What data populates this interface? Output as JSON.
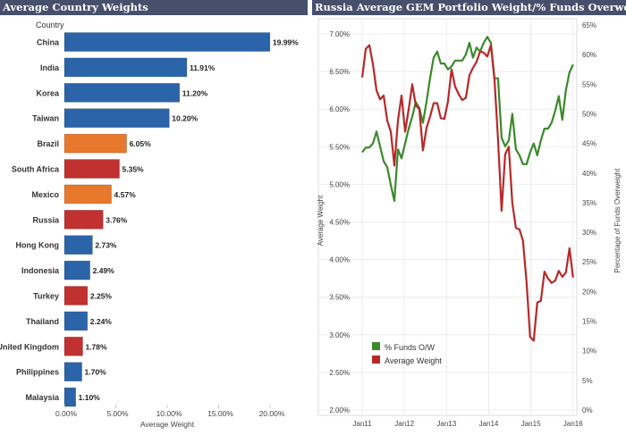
{
  "chart_data": [
    {
      "type": "bar",
      "title": "Average Country Weights",
      "orientation": "horizontal",
      "ylabel": "Country",
      "xlabel": "Average Weight",
      "xlim": [
        0,
        20
      ],
      "xticks": [
        "0.00%",
        "5.00%",
        "10.00%",
        "15.00%",
        "20.00%"
      ],
      "categories": [
        "China",
        "India",
        "Korea",
        "Taiwan",
        "Brazil",
        "South Africa",
        "Mexico",
        "Russia",
        "Hong Kong",
        "Indonesia",
        "Turkey",
        "Thailand",
        "United Kingdom",
        "Philippines",
        "Malaysia"
      ],
      "values": [
        19.99,
        11.91,
        11.2,
        10.2,
        6.05,
        5.35,
        4.57,
        3.76,
        2.73,
        2.49,
        2.25,
        2.24,
        1.78,
        1.7,
        1.1
      ],
      "labels": [
        "19.99%",
        "11.91%",
        "11.20%",
        "10.20%",
        "6.05%",
        "5.35%",
        "4.57%",
        "3.76%",
        "2.73%",
        "2.49%",
        "2.25%",
        "2.24%",
        "1.78%",
        "1.70%",
        "1.10%"
      ],
      "bar_colors": [
        "#2b64a8",
        "#2b64a8",
        "#2b64a8",
        "#2b64a8",
        "#e8782c",
        "#c0312f",
        "#e8782c",
        "#c0312f",
        "#2b64a8",
        "#2b64a8",
        "#c0312f",
        "#2b64a8",
        "#c0312f",
        "#2b64a8",
        "#2b64a8"
      ],
      "grid": false
    },
    {
      "type": "line",
      "title": "Russia Average GEM Portfolio Weight/% Funds Overweight",
      "x_start": "Jan11",
      "x_frequency": "monthly",
      "xticks": [
        "Jan11",
        "Jan12",
        "Jan13",
        "Jan14",
        "Jan15",
        "Jan16"
      ],
      "ylabel_left": "Average Weight",
      "ylim_left": [
        2.0,
        7.2
      ],
      "yticks_left": [
        "2.00%",
        "2.50%",
        "3.00%",
        "3.50%",
        "4.00%",
        "4.50%",
        "5.00%",
        "5.50%",
        "6.00%",
        "6.50%",
        "7.00%"
      ],
      "ylabel_right": "Percentage of Funds Overweight",
      "ylim_right": [
        0,
        66
      ],
      "yticks_right": [
        "0%",
        "5%",
        "10%",
        "15%",
        "20%",
        "25%",
        "30%",
        "35%",
        "40%",
        "45%",
        "50%",
        "55%",
        "60%",
        "65%"
      ],
      "legend_position": "bottom-left",
      "grid": true,
      "series": [
        {
          "name": "% Funds O/W",
          "axis": "right",
          "color": "#3a8a2a",
          "values": [
            43.5,
            44.3,
            44.3,
            45,
            47,
            44.5,
            42,
            41,
            38,
            35.3,
            44,
            42.5,
            45,
            47.5,
            49.5,
            52,
            51,
            48.5,
            52,
            56,
            59.5,
            60.5,
            58.5,
            58.5,
            57.5,
            58,
            59,
            59,
            59,
            60,
            62,
            59.5,
            61.2,
            60.5,
            62,
            63,
            62,
            56,
            56,
            46,
            44.5,
            45.5,
            50,
            44,
            43,
            41.5,
            41.5,
            43.5,
            45,
            43,
            45.5,
            47.5,
            47.5,
            48.5,
            50.5,
            53,
            49,
            54,
            57,
            58.3
          ]
        },
        {
          "name": "Average Weight",
          "axis": "left",
          "color": "#b8282a",
          "values": [
            6.42,
            6.8,
            6.85,
            6.6,
            6.25,
            6.13,
            6.18,
            5.85,
            5.7,
            5.25,
            5.85,
            6.18,
            5.7,
            6.0,
            6.33,
            6.05,
            6.0,
            5.45,
            5.75,
            5.9,
            6.08,
            6.08,
            5.88,
            5.87,
            6.1,
            6.53,
            6.3,
            6.2,
            6.12,
            6.15,
            6.45,
            6.55,
            6.63,
            6.77,
            6.75,
            6.7,
            6.85,
            6.4,
            5.6,
            4.65,
            5.4,
            5.5,
            4.75,
            4.42,
            4.4,
            4.25,
            3.7,
            2.97,
            2.92,
            3.43,
            3.45,
            3.84,
            3.75,
            3.69,
            3.72,
            3.85,
            3.77,
            3.83,
            4.15,
            3.76
          ]
        }
      ]
    }
  ]
}
